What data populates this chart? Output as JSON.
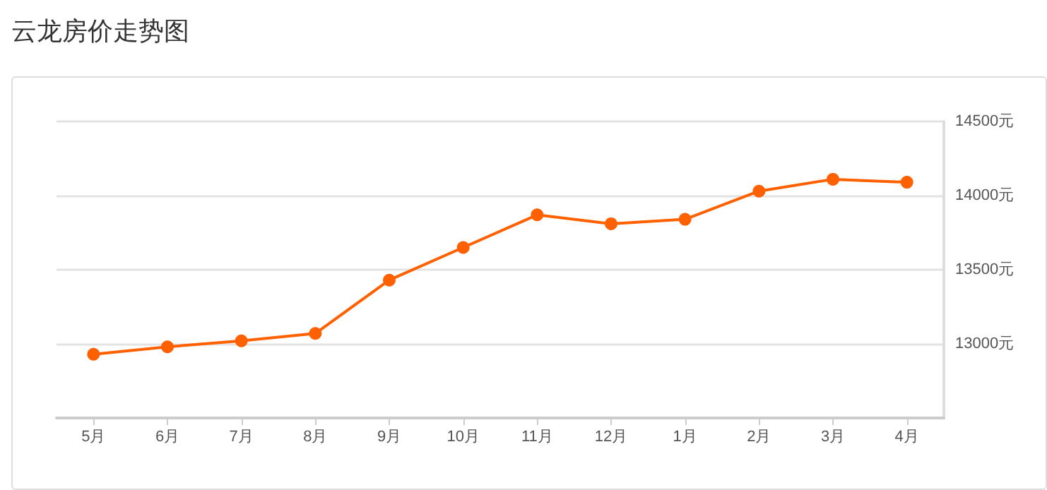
{
  "chart_data": {
    "type": "line",
    "title": "云龙房价走势图",
    "categories": [
      "5月",
      "6月",
      "7月",
      "8月",
      "9月",
      "10月",
      "11月",
      "12月",
      "1月",
      "2月",
      "3月",
      "4月"
    ],
    "series": [
      {
        "color": "#ff6000",
        "values": [
          12930,
          12980,
          13020,
          13070,
          13430,
          13650,
          13870,
          13810,
          13840,
          14030,
          14110,
          14090
        ]
      }
    ],
    "ylim": [
      12500,
      14500
    ],
    "yticks": [
      {
        "value": 12500,
        "label": null
      },
      {
        "value": 13000,
        "label": "13000元"
      },
      {
        "value": 13500,
        "label": "13500元"
      },
      {
        "value": 14000,
        "label": "14000元"
      },
      {
        "value": 14500,
        "label": "14500元"
      }
    ],
    "grid": "y",
    "marker": "circle",
    "line_style": "solid"
  }
}
